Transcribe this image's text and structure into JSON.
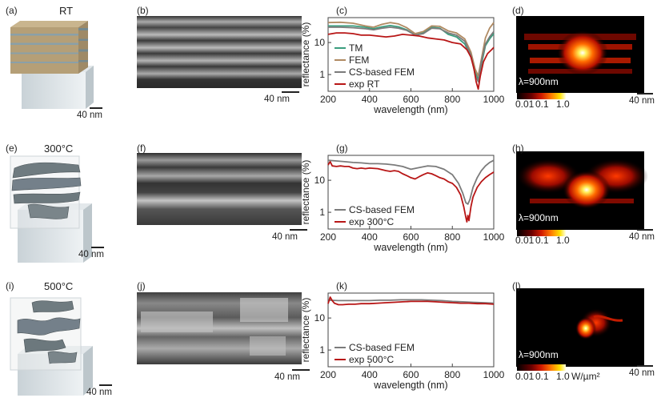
{
  "rows": [
    {
      "labels": [
        "(a)",
        "(b)",
        "(c)",
        "(d)"
      ],
      "condition": "RT",
      "scale_3d": "40 nm",
      "scale_tem": "40 nm",
      "scale_field": "40 nm",
      "lambda": "λ=900nm",
      "colorbar_ticks": [
        "0.01",
        "0.1",
        "1.0"
      ],
      "colorbar_unit": ""
    },
    {
      "labels": [
        "(e)",
        "(f)",
        "(g)",
        "(h)"
      ],
      "condition": "300°C",
      "scale_3d": "40 nm",
      "scale_tem": "40 nm",
      "scale_field": "40 nm",
      "lambda": "λ=900nm",
      "colorbar_ticks": [
        "0.01",
        "0.1",
        "1.0"
      ],
      "colorbar_unit": ""
    },
    {
      "labels": [
        "(i)",
        "(j)",
        "(k)",
        "(l)"
      ],
      "condition": "500°C",
      "scale_3d": "40 nm",
      "scale_tem": "40 nm",
      "scale_field": "40 nm",
      "lambda": "λ=900nm",
      "colorbar_ticks": [
        "0.01",
        "0.1",
        "1.0"
      ],
      "colorbar_unit": "W/µm²"
    }
  ],
  "colors": {
    "TM": "#3a9e7e",
    "FEM": "#b08a62",
    "CS-based FEM": "#7b7b7b",
    "exp": "#b81616"
  },
  "chart_data": [
    {
      "type": "line",
      "panel": "(c)",
      "xlabel": "wavelength (nm)",
      "ylabel": "reflectance (%)",
      "xlim": [
        200,
        1000
      ],
      "ylim": [
        0.3,
        60
      ],
      "yscale": "log",
      "xticks": [
        200,
        400,
        600,
        800,
        1000
      ],
      "yticks": [
        1,
        10
      ],
      "ytick_labels": [
        "1",
        "10"
      ],
      "legend": "left, lower",
      "series": [
        {
          "name": "TM",
          "color": "#3a9e7e",
          "x": [
            200,
            260,
            320,
            380,
            420,
            460,
            500,
            540,
            580,
            620,
            660,
            700,
            740,
            780,
            820,
            860,
            890,
            910,
            925,
            940,
            960,
            980,
            1000
          ],
          "y": [
            33,
            33,
            33,
            30,
            27,
            31,
            34,
            31,
            25,
            17,
            20,
            30,
            28,
            18,
            15,
            9,
            3.5,
            1.2,
            0.7,
            2,
            8,
            13,
            19
          ]
        },
        {
          "name": "FEM",
          "color": "#b08a62",
          "x": [
            200,
            260,
            320,
            380,
            420,
            460,
            500,
            540,
            580,
            620,
            660,
            700,
            740,
            780,
            820,
            860,
            890,
            910,
            925,
            940,
            960,
            980,
            1000
          ],
          "y": [
            42,
            43,
            40,
            33,
            30,
            37,
            42,
            38,
            29,
            19,
            22,
            33,
            32,
            23,
            20,
            13,
            5,
            1.5,
            0.9,
            3,
            14,
            28,
            42
          ]
        },
        {
          "name": "CS-based FEM",
          "color": "#7b7b7b",
          "x": [
            200,
            260,
            320,
            380,
            420,
            460,
            500,
            540,
            580,
            620,
            660,
            700,
            740,
            780,
            820,
            860,
            890,
            910,
            925,
            940,
            960,
            980,
            1000
          ],
          "y": [
            30,
            30,
            29,
            27,
            25,
            28,
            30,
            28,
            24,
            17,
            19,
            28,
            27,
            20,
            17,
            11,
            4,
            1.0,
            0.6,
            2.5,
            9,
            15,
            22
          ]
        },
        {
          "name": "exp RT",
          "color": "#b81616",
          "x": [
            200,
            240,
            280,
            320,
            360,
            400,
            440,
            480,
            520,
            560,
            600,
            640,
            680,
            720,
            760,
            800,
            840,
            870,
            890,
            905,
            915,
            925,
            935,
            950,
            970,
            990,
            1000
          ],
          "y": [
            18,
            20,
            20,
            19,
            17,
            17,
            16,
            15,
            16,
            18,
            17,
            16,
            14,
            13,
            12,
            10,
            9,
            6,
            3.5,
            1.5,
            0.6,
            0.35,
            0.9,
            2.5,
            4.5,
            6,
            7
          ]
        }
      ]
    },
    {
      "type": "line",
      "panel": "(g)",
      "xlabel": "wavelength (nm)",
      "ylabel": "reflectance (%)",
      "xlim": [
        200,
        1000
      ],
      "ylim": [
        0.3,
        60
      ],
      "yscale": "log",
      "xticks": [
        200,
        400,
        600,
        800,
        1000
      ],
      "yticks": [
        1,
        10
      ],
      "ytick_labels": [
        "1",
        "10"
      ],
      "legend": "left, lower",
      "series": [
        {
          "name": "CS-based FEM",
          "color": "#7b7b7b",
          "x": [
            200,
            240,
            280,
            320,
            360,
            400,
            440,
            480,
            520,
            560,
            600,
            640,
            680,
            720,
            760,
            800,
            830,
            850,
            865,
            875,
            885,
            900,
            920,
            940,
            960,
            980,
            1000
          ],
          "y": [
            42,
            40,
            38,
            36,
            35,
            33,
            33,
            32,
            30,
            27,
            22,
            25,
            28,
            27,
            22,
            15,
            8,
            4,
            2,
            1.8,
            2.5,
            6,
            12,
            20,
            28,
            36,
            42
          ]
        },
        {
          "name": "exp 300°C",
          "color": "#b81616",
          "x": [
            200,
            210,
            220,
            240,
            260,
            280,
            300,
            320,
            340,
            360,
            380,
            400,
            440,
            480,
            500,
            520,
            540,
            560,
            580,
            600,
            620,
            640,
            660,
            680,
            700,
            720,
            740,
            760,
            780,
            800,
            820,
            840,
            855,
            865,
            870,
            875,
            880,
            890,
            900,
            920,
            940,
            960,
            980,
            1000
          ],
          "y": [
            30,
            38,
            28,
            27,
            28,
            27,
            27,
            24,
            23,
            24,
            23,
            24,
            23,
            20,
            19,
            20,
            19,
            16,
            14,
            12,
            11,
            13,
            15,
            17,
            16,
            14,
            12,
            11,
            9,
            8,
            6,
            3.5,
            1.5,
            0.7,
            0.5,
            0.8,
            0.55,
            1.5,
            3,
            6,
            9,
            12,
            15,
            18
          ]
        }
      ]
    },
    {
      "type": "line",
      "panel": "(k)",
      "xlabel": "wavelength (nm)",
      "ylabel": "reflectance (%)",
      "xlim": [
        200,
        1000
      ],
      "ylim": [
        0.3,
        60
      ],
      "yscale": "log",
      "xticks": [
        200,
        400,
        600,
        800,
        1000
      ],
      "yticks": [
        1,
        10
      ],
      "ytick_labels": [
        "1",
        "10"
      ],
      "legend": "left, lower",
      "series": [
        {
          "name": "CS-based FEM",
          "color": "#7b7b7b",
          "x": [
            200,
            250,
            300,
            350,
            400,
            450,
            500,
            550,
            600,
            650,
            700,
            750,
            800,
            850,
            900,
            950,
            1000
          ],
          "y": [
            36,
            35,
            35,
            35,
            35,
            36,
            36,
            37,
            37,
            37,
            36,
            35,
            33,
            32,
            31,
            30,
            29
          ]
        },
        {
          "name": "exp 500°C",
          "color": "#b81616",
          "x": [
            200,
            210,
            220,
            230,
            250,
            270,
            300,
            330,
            360,
            400,
            440,
            480,
            520,
            560,
            600,
            640,
            680,
            720,
            760,
            800,
            840,
            880,
            920,
            960,
            1000
          ],
          "y": [
            28,
            45,
            35,
            29,
            26,
            26,
            27,
            27,
            28,
            28,
            29,
            30,
            31,
            32,
            33,
            33,
            33,
            32,
            31,
            30,
            29,
            29,
            28,
            28,
            27
          ]
        }
      ]
    }
  ]
}
